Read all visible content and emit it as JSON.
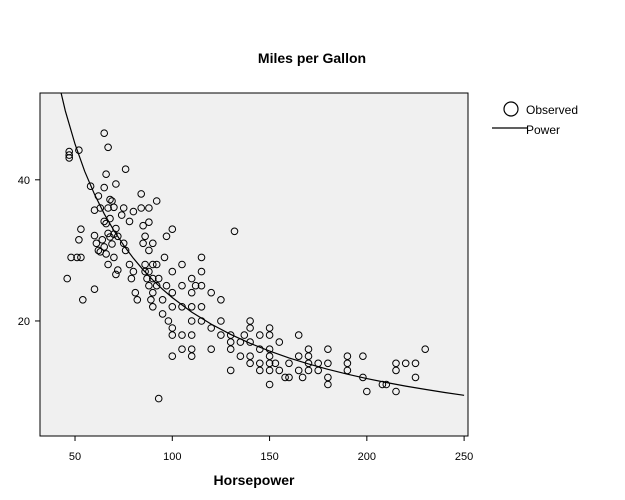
{
  "chart_data": {
    "type": "scatter",
    "title": "Miles per Gallon",
    "xlabel": "Horsepower",
    "ylabel": "",
    "xlim": [
      32,
      252
    ],
    "ylim": [
      3.7,
      52.3
    ],
    "x_ticks": [
      50,
      100,
      150,
      200,
      250
    ],
    "y_ticks": [
      20,
      40
    ],
    "grid": false,
    "legend_position": "top-right",
    "colors": {
      "plot_bg": "#f0f0f0",
      "frame": "#000000",
      "marker": "#000000"
    },
    "series": [
      {
        "name": "Observed",
        "mark": "open-circle",
        "points": [
          [
            47,
            44.0
          ],
          [
            47,
            43.5
          ],
          [
            47,
            43.1
          ],
          [
            52,
            44.2
          ],
          [
            48,
            29.0
          ],
          [
            51,
            29.0
          ],
          [
            46,
            26.0
          ],
          [
            60,
            24.5
          ],
          [
            54,
            23.0
          ],
          [
            53,
            33.0
          ],
          [
            52,
            31.5
          ],
          [
            53,
            29.0
          ],
          [
            65,
            46.6
          ],
          [
            67,
            44.6
          ],
          [
            71,
            39.4
          ],
          [
            65,
            38.9
          ],
          [
            58,
            39.1
          ],
          [
            60,
            35.7
          ],
          [
            62,
            37.7
          ],
          [
            63,
            36.0
          ],
          [
            66,
            40.8
          ],
          [
            67,
            36.0
          ],
          [
            68,
            37.2
          ],
          [
            69,
            37.0
          ],
          [
            70,
            36.1
          ],
          [
            65,
            34.1
          ],
          [
            66,
            33.8
          ],
          [
            68,
            34.5
          ],
          [
            67,
            32.4
          ],
          [
            70,
            32.3
          ],
          [
            71,
            33.1
          ],
          [
            72,
            32.0
          ],
          [
            60,
            32.1
          ],
          [
            61,
            31.0
          ],
          [
            62,
            30.0
          ],
          [
            63,
            29.8
          ],
          [
            64,
            31.5
          ],
          [
            65,
            30.5
          ],
          [
            66,
            29.5
          ],
          [
            67,
            28.0
          ],
          [
            68,
            31.9
          ],
          [
            69,
            30.9
          ],
          [
            70,
            29.0
          ],
          [
            71,
            26.6
          ],
          [
            72,
            27.2
          ],
          [
            74,
            35.0
          ],
          [
            75,
            36.0
          ],
          [
            76,
            41.5
          ],
          [
            75,
            31.0
          ],
          [
            76,
            30.0
          ],
          [
            78,
            34.1
          ],
          [
            78,
            28.0
          ],
          [
            79,
            26.0
          ],
          [
            80,
            35.5
          ],
          [
            80,
            27.0
          ],
          [
            81,
            24.0
          ],
          [
            82,
            23.0
          ],
          [
            84,
            38.0
          ],
          [
            84,
            36.0
          ],
          [
            85,
            33.5
          ],
          [
            85,
            31.0
          ],
          [
            86,
            32.0
          ],
          [
            86,
            28.0
          ],
          [
            86,
            27.0
          ],
          [
            87,
            26.0
          ],
          [
            88,
            36.0
          ],
          [
            88,
            34.0
          ],
          [
            88,
            30.0
          ],
          [
            88,
            27.0
          ],
          [
            88,
            25.0
          ],
          [
            89,
            23.0
          ],
          [
            90,
            31.0
          ],
          [
            90,
            28.0
          ],
          [
            90,
            26.0
          ],
          [
            90,
            24.0
          ],
          [
            90,
            22.0
          ],
          [
            92,
            37.0
          ],
          [
            92,
            28.0
          ],
          [
            92,
            25.0
          ],
          [
            93,
            26.0
          ],
          [
            95,
            23.0
          ],
          [
            95,
            21.0
          ],
          [
            96,
            29.0
          ],
          [
            97,
            32.0
          ],
          [
            97,
            25.0
          ],
          [
            98,
            20.0
          ],
          [
            100,
            33.0
          ],
          [
            100,
            27.0
          ],
          [
            100,
            24.0
          ],
          [
            100,
            22.0
          ],
          [
            100,
            19.0
          ],
          [
            100,
            18.0
          ],
          [
            100,
            15.0
          ],
          [
            105,
            28.0
          ],
          [
            105,
            25.0
          ],
          [
            105,
            22.0
          ],
          [
            105,
            18.0
          ],
          [
            105,
            16.0
          ],
          [
            110,
            26.0
          ],
          [
            110,
            24.0
          ],
          [
            110,
            22.0
          ],
          [
            110,
            20.0
          ],
          [
            110,
            18.0
          ],
          [
            110,
            16.0
          ],
          [
            110,
            15.0
          ],
          [
            112,
            25.0
          ],
          [
            115,
            29.0
          ],
          [
            115,
            27.0
          ],
          [
            115,
            25.0
          ],
          [
            115,
            22.0
          ],
          [
            115,
            20.0
          ],
          [
            120,
            24.0
          ],
          [
            120,
            19.0
          ],
          [
            120,
            16.0
          ],
          [
            125,
            23.0
          ],
          [
            125,
            20.0
          ],
          [
            125,
            18.0
          ],
          [
            130,
            18.0
          ],
          [
            130,
            17.0
          ],
          [
            130,
            16.0
          ],
          [
            130,
            13.0
          ],
          [
            132,
            32.7
          ],
          [
            135,
            17.0
          ],
          [
            135,
            15.0
          ],
          [
            137,
            18.0
          ],
          [
            140,
            20.0
          ],
          [
            140,
            19.0
          ],
          [
            140,
            17.0
          ],
          [
            140,
            15.0
          ],
          [
            140,
            14.0
          ],
          [
            145,
            18.0
          ],
          [
            145,
            16.0
          ],
          [
            145,
            14.0
          ],
          [
            145,
            13.0
          ],
          [
            150,
            19.0
          ],
          [
            150,
            18.0
          ],
          [
            150,
            16.0
          ],
          [
            150,
            15.0
          ],
          [
            150,
            14.0
          ],
          [
            150,
            13.0
          ],
          [
            150,
            11.0
          ],
          [
            153,
            14.0
          ],
          [
            155,
            17.0
          ],
          [
            155,
            13.0
          ],
          [
            158,
            12.0
          ],
          [
            160,
            14.0
          ],
          [
            160,
            12.0
          ],
          [
            165,
            18.0
          ],
          [
            165,
            15.0
          ],
          [
            165,
            13.0
          ],
          [
            167,
            12.0
          ],
          [
            170,
            16.0
          ],
          [
            170,
            15.0
          ],
          [
            170,
            14.0
          ],
          [
            170,
            13.0
          ],
          [
            175,
            14.0
          ],
          [
            175,
            13.0
          ],
          [
            180,
            16.0
          ],
          [
            180,
            14.0
          ],
          [
            180,
            12.0
          ],
          [
            180,
            11.0
          ],
          [
            190,
            15.0
          ],
          [
            190,
            14.0
          ],
          [
            190,
            13.0
          ],
          [
            198,
            15.0
          ],
          [
            198,
            12.0
          ],
          [
            200,
            10.0
          ],
          [
            208,
            11.0
          ],
          [
            210,
            11.0
          ],
          [
            215,
            14.0
          ],
          [
            215,
            13.0
          ],
          [
            215,
            10.0
          ],
          [
            220,
            14.0
          ],
          [
            225,
            14.0
          ],
          [
            225,
            12.0
          ],
          [
            230,
            16.0
          ],
          [
            93,
            9.0
          ]
        ]
      },
      {
        "name": "Power",
        "mark": "line",
        "x": [
          40,
          45,
          50,
          55,
          60,
          65,
          70,
          75,
          80,
          85,
          90,
          95,
          100,
          110,
          120,
          130,
          140,
          150,
          160,
          170,
          180,
          190,
          200,
          210,
          220,
          230,
          240,
          250
        ],
        "y": [
          55.61,
          49.78,
          45.07,
          41.2,
          37.95,
          35.18,
          32.8,
          30.72,
          28.88,
          27.25,
          25.8,
          24.49,
          23.31,
          21.26,
          19.55,
          18.09,
          16.83,
          15.73,
          14.77,
          13.91,
          13.15,
          12.46,
          11.84,
          11.28,
          10.77,
          10.3,
          9.87,
          9.47
        ]
      }
    ]
  }
}
